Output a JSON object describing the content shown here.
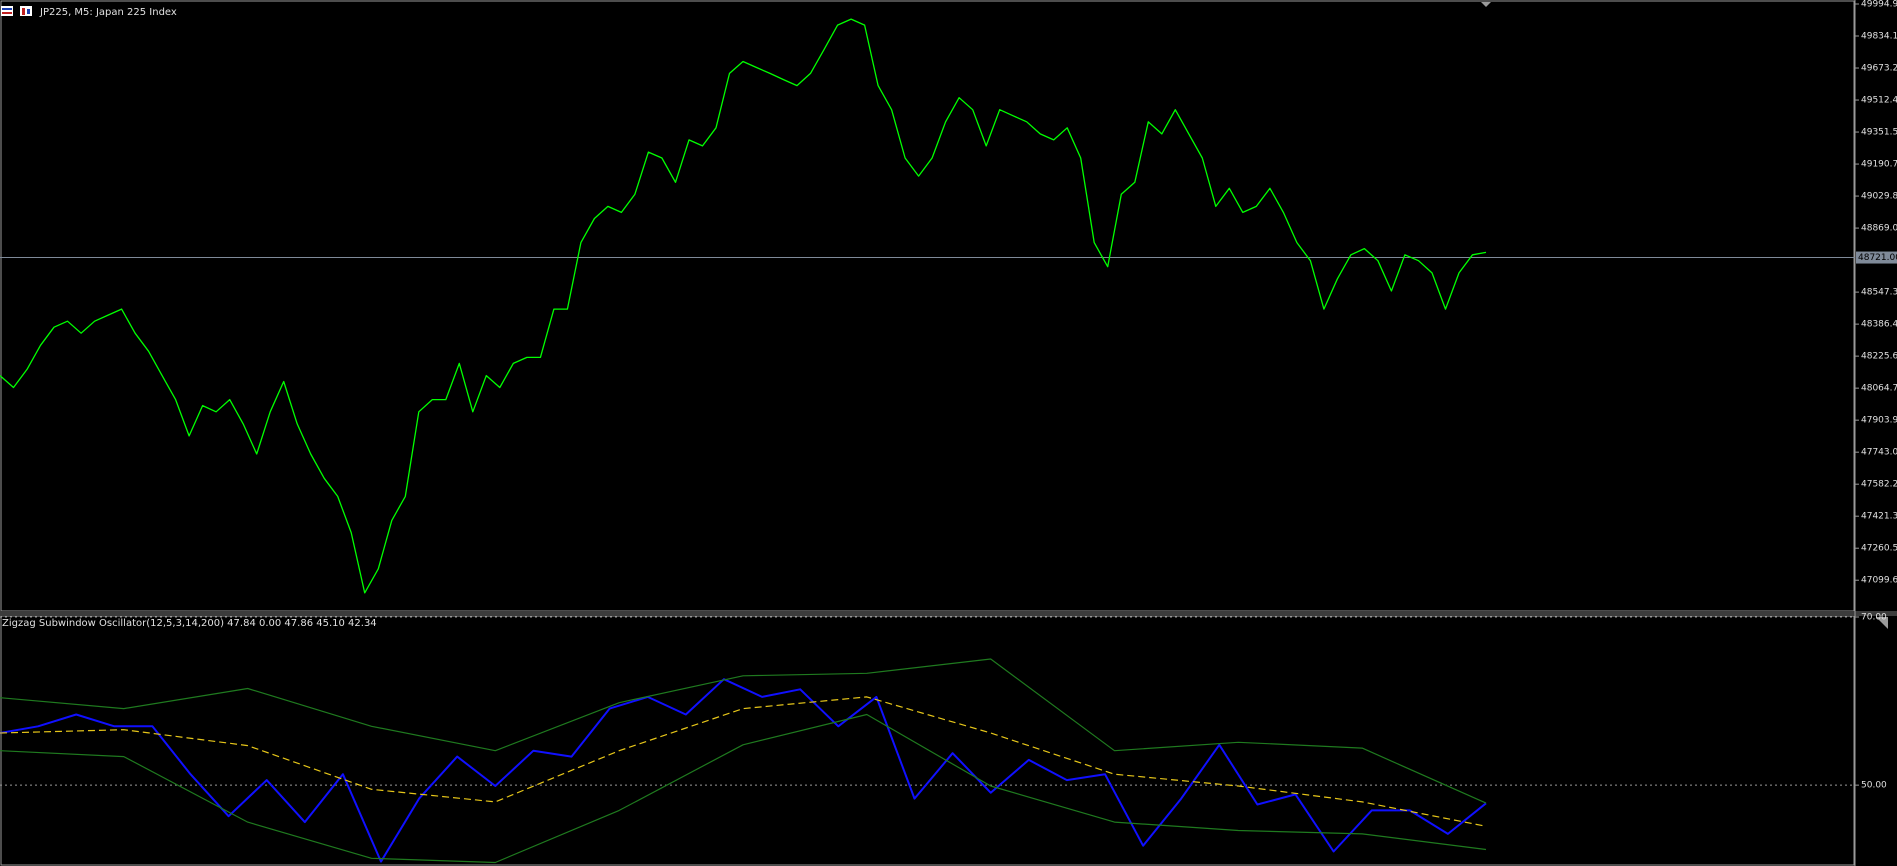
{
  "header": {
    "title": "JP225, M5:  Japan 225 Index"
  },
  "chart_data": [
    {
      "type": "line",
      "color": "#00ff00",
      "values": [
        48128,
        48068,
        48159,
        48280,
        48371,
        48401,
        48341,
        48401,
        48432,
        48462,
        48341,
        48250,
        48128,
        48007,
        47825,
        47977,
        47946,
        48007,
        47885,
        47734,
        47946,
        48098,
        47885,
        47734,
        47612,
        47521,
        47339,
        47036,
        47157,
        47400,
        47521,
        47946,
        48007,
        48007,
        48189,
        47946,
        48128,
        48068,
        48189,
        48219,
        48219,
        48462,
        48462,
        48796,
        48917,
        48978,
        48948,
        49039,
        49251,
        49221,
        49099,
        49312,
        49282,
        49373,
        49646,
        49706,
        49676,
        49646,
        49615,
        49585,
        49646,
        49767,
        49889,
        49919,
        49889,
        49585,
        49464,
        49221,
        49130,
        49221,
        49403,
        49524,
        49464,
        49282,
        49464,
        49433,
        49403,
        49342,
        49312,
        49373,
        49221,
        48796,
        48675,
        49039,
        49099,
        49403,
        49342,
        49464,
        49342,
        49221,
        48978,
        49069,
        48948,
        48978,
        49069,
        48948,
        48796,
        48705,
        48462,
        48614,
        48735,
        48766,
        48705,
        48553,
        48735,
        48705,
        48644,
        48462,
        48644,
        48735,
        48747
      ],
      "ylim": [
        46945,
        50010
      ],
      "yticks": [
        49994.95,
        {
          "value": 49834.1,
          "label": "49834.10"
        },
        49673.25,
        {
          "value": 49512.4,
          "label": "49512.40"
        },
        49351.55,
        {
          "value": 49190.7,
          "label": "49190.70"
        },
        49029.85,
        {
          "value": 48869,
          "label": "48869.00"
        },
        {
          "value": 48547.3,
          "label": "48547.30"
        },
        48386.45,
        {
          "value": 48225.6,
          "label": "48225.60"
        },
        48064.75,
        {
          "value": 47903.9,
          "label": "47903.90"
        },
        47743.05,
        {
          "value": 47582.2,
          "label": "47582.20"
        },
        47421.35,
        {
          "value": 47260.5,
          "label": "47260.50"
        },
        47099.65
      ],
      "current_price": {
        "value": 48721,
        "label": "48721.00"
      }
    },
    {
      "type": "line",
      "title": "Zigzag Subwindow Oscillator(12,5,3,14,200) 47.84 0.00 47.86 45.10 42.34",
      "series": [
        {
          "color": "#1010ff",
          "values": [
            56.2,
            57.0,
            58.4,
            57.0,
            57.0,
            51.3,
            46.3,
            50.6,
            45.6,
            51.3,
            40.9,
            48.4,
            53.4,
            49.9,
            54.1,
            53.4,
            59.1,
            60.5,
            58.4,
            62.6,
            60.5,
            61.4,
            57.0,
            60.5,
            48.4,
            53.8,
            49.1,
            53.0,
            50.6,
            51.3,
            42.8,
            48.4,
            54.8,
            47.7,
            48.9,
            42.1,
            47.0,
            47.0,
            44.2,
            47.84
          ]
        },
        {
          "color": "#e6c619",
          "dashed": true,
          "values": [
            56.2,
            56.6,
            54.7,
            49.5,
            48.0,
            54.1,
            59.1,
            60.5,
            56.2,
            51.3,
            49.9,
            48.0,
            45.1
          ]
        },
        {
          "color": "#1f7a1f",
          "values": [
            60.4,
            59.1,
            61.5,
            57.0,
            54.1,
            59.8,
            63.0,
            63.3,
            65.0,
            54.1,
            55.1,
            54.4,
            47.86
          ]
        },
        {
          "color": "#1f7a1f",
          "values": [
            54.1,
            53.4,
            45.6,
            41.3,
            40.8,
            47.0,
            54.8,
            58.4,
            49.9,
            45.6,
            44.6,
            44.2,
            42.34
          ]
        }
      ],
      "ylim": [
        40.5,
        70
      ],
      "yticks": [
        {
          "value": 70,
          "label": "70.00"
        },
        {
          "value": 50,
          "label": "50.00"
        }
      ],
      "grid": true
    }
  ]
}
